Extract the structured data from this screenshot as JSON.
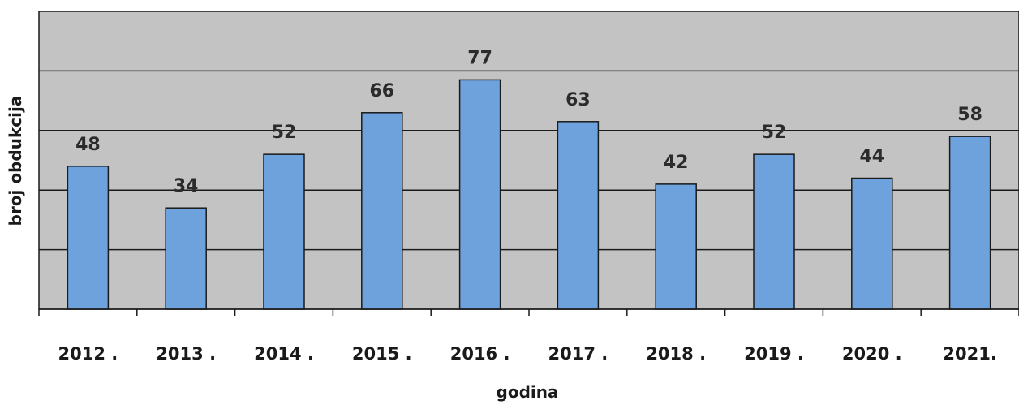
{
  "colors": {
    "plot_background": "#c3c3c3",
    "bar_fill": "#6ea2dd",
    "bar_stroke": "#1a1a1a",
    "grid": "#1a1a1a"
  },
  "chart_data": {
    "type": "bar",
    "title": "",
    "xlabel": "godina",
    "ylabel": "broj obdukcija",
    "categories": [
      "2012 .",
      "2013 .",
      "2014 .",
      "2015 .",
      "2016 .",
      "2017 .",
      "2018 .",
      "2019 .",
      "2020 .",
      "2021."
    ],
    "values": [
      48,
      34,
      52,
      66,
      77,
      63,
      42,
      52,
      44,
      58
    ],
    "data_labels": [
      "48",
      "34",
      "52",
      "66",
      "77",
      "63",
      "42",
      "52",
      "44",
      "58"
    ],
    "ylim": [
      0,
      100
    ],
    "grid": true,
    "show_y_ticks": false,
    "legend": "none"
  }
}
